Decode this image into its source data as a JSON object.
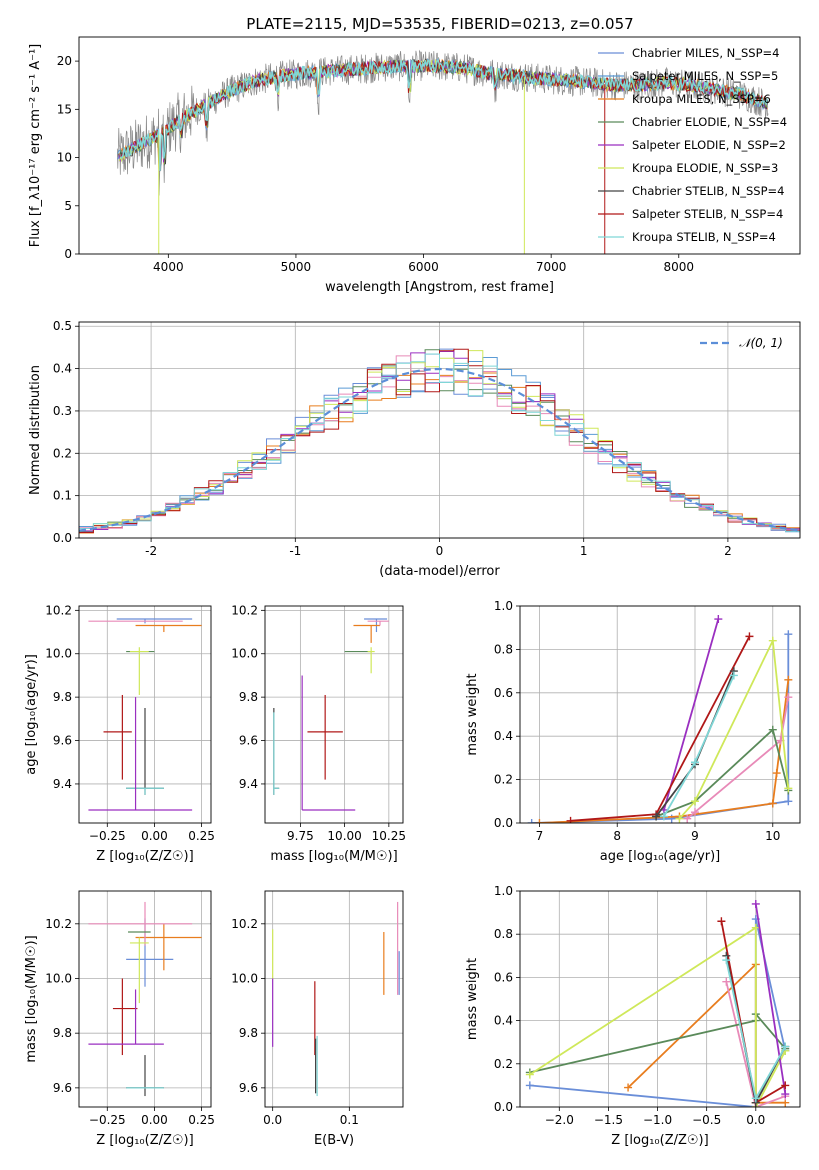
{
  "figure": {
    "title": "PLATE=2115, MJD=53535, FIBERID=0213, z=0.057"
  },
  "colors": [
    "#6a8ed8",
    "#5b9bd5",
    "#e87d1e",
    "#5a8a5a",
    "#9a2fc0",
    "#cfe85a",
    "#444444",
    "#b01818",
    "#7fd6d6"
  ],
  "chart_data": [
    {
      "id": "spectrum",
      "type": "line",
      "title": "PLATE=2115, MJD=53535, FIBERID=0213, z=0.057",
      "xlabel": "wavelength [Angstrom, rest frame]",
      "ylabel": "Flux [f_λ10⁻¹⁷ erg cm⁻² s⁻¹ A⁻¹]",
      "xlim": [
        3300,
        8950
      ],
      "ylim": [
        0,
        22.5
      ],
      "xticks": [
        4000,
        5000,
        6000,
        7000,
        8000
      ],
      "yticks": [
        0,
        5,
        10,
        15,
        20
      ],
      "grid": false,
      "legend_position": "top-right",
      "continuum": {
        "x": [
          3600,
          3800,
          3950,
          4100,
          4300,
          4500,
          4700,
          4900,
          5100,
          5300,
          5500,
          5700,
          5900,
          6100,
          6300,
          6500,
          6700,
          6900,
          7100,
          7300,
          7500,
          7700,
          7900,
          8100,
          8300,
          8500,
          8700
        ],
        "y": [
          10,
          11.5,
          12.5,
          14,
          15.5,
          17,
          18,
          18.5,
          18.8,
          19,
          19.2,
          19.4,
          19.5,
          19.5,
          19.3,
          18.8,
          18.5,
          18.2,
          18,
          17.8,
          17.5,
          17.5,
          17.8,
          17.5,
          17,
          16.5,
          15.5
        ]
      },
      "series": [
        {
          "name": "Chabrier MILES, N_SSP=4",
          "color": "#6a8ed8"
        },
        {
          "name": "Salpeter MILES, N_SSP=5",
          "color": "#5b9bd5"
        },
        {
          "name": "Kroupa MILES, N_SSP=6",
          "color": "#e87d1e"
        },
        {
          "name": "Chabrier ELODIE, N_SSP=4",
          "color": "#5a8a5a"
        },
        {
          "name": "Salpeter ELODIE, N_SSP=2",
          "color": "#9a2fc0"
        },
        {
          "name": "Kroupa ELODIE, N_SSP=3",
          "color": "#cfe85a"
        },
        {
          "name": "Chabrier STELIB, N_SSP=4",
          "color": "#444444"
        },
        {
          "name": "Salpeter STELIB, N_SSP=4",
          "color": "#b01818"
        },
        {
          "name": "Kroupa STELIB, N_SSP=4",
          "color": "#7fd6d6"
        }
      ]
    },
    {
      "id": "residuals",
      "type": "line",
      "xlabel": "(data-model)/error",
      "ylabel": "Normed distribution",
      "xlim": [
        -2.5,
        2.5
      ],
      "ylim": [
        0,
        0.51
      ],
      "xticks": [
        -2,
        -1,
        0,
        1,
        2
      ],
      "yticks": [
        0.0,
        0.1,
        0.2,
        0.3,
        0.4,
        0.5
      ],
      "grid": true,
      "legend_position": "top-right",
      "legend": "𝒩(0, 1)",
      "bin_width": 0.1,
      "gaussian": {
        "mean": 0,
        "sigma": 1,
        "color": "#5b8ed8"
      }
    },
    {
      "id": "age_vs_Z",
      "type": "scatter",
      "xlabel": "Z [log₁₀(Z/Z☉)]",
      "ylabel": "age  [log₁₀(age/yr)]",
      "xlim": [
        -0.4,
        0.3
      ],
      "ylim": [
        9.22,
        10.22
      ],
      "xticks": [
        -0.25,
        0.0,
        0.25
      ],
      "xticklabels": [
        "−0.25",
        "0.00",
        "0.25"
      ],
      "yticks": [
        9.4,
        9.6,
        9.8,
        10.0,
        10.2
      ],
      "grid": true,
      "points": [
        {
          "x": -0.05,
          "y": 10.16,
          "xerr": [
            0.15,
            0.25
          ],
          "yerr": [
            0.02,
            0.0
          ],
          "color": "#6a8ed8"
        },
        {
          "x": 0.05,
          "y": 10.13,
          "xerr": [
            0.15,
            0.2
          ],
          "yerr": [
            0.03,
            0.0
          ],
          "color": "#e87d1e"
        },
        {
          "x": -0.05,
          "y": 10.15,
          "xerr": [
            0.3,
            0.2
          ],
          "yerr": [
            0.0,
            0.0
          ],
          "color": "#e88ab8"
        },
        {
          "x": -0.1,
          "y": 10.01,
          "xerr": [
            0.05,
            0.1
          ],
          "yerr": [
            0.0,
            0.0
          ],
          "color": "#5a8a5a"
        },
        {
          "x": -0.08,
          "y": 10.01,
          "xerr": [
            0.05,
            0.05
          ],
          "yerr": [
            0.2,
            0.02
          ],
          "color": "#cfe85a"
        },
        {
          "x": -0.17,
          "y": 9.64,
          "xerr": [
            0.1,
            0.05
          ],
          "yerr": [
            0.22,
            0.17
          ],
          "color": "#b01818"
        },
        {
          "x": -0.05,
          "y": 9.38,
          "xerr": [
            0.1,
            0.1
          ],
          "yerr": [
            0.03,
            0.37
          ],
          "color": "#444444"
        },
        {
          "x": -0.05,
          "y": 9.38,
          "xerr": [
            0.1,
            0.1
          ],
          "yerr": [
            0.03,
            0.0
          ],
          "color": "#7fd6d6"
        },
        {
          "x": -0.1,
          "y": 9.28,
          "xerr": [
            0.25,
            0.3
          ],
          "yerr": [
            0.0,
            0.52
          ],
          "color": "#9a2fc0"
        }
      ]
    },
    {
      "id": "age_vs_mass",
      "type": "scatter",
      "xlabel": "mass [log₁₀(M/M☉)]",
      "xlim": [
        9.55,
        10.33
      ],
      "ylim": [
        9.22,
        10.22
      ],
      "xticks": [
        9.75,
        10.0,
        10.25
      ],
      "xticklabels": [
        "9.75",
        "10.00",
        "10.25"
      ],
      "yticks": [
        9.4,
        9.6,
        9.8,
        10.0,
        10.2
      ],
      "grid": true,
      "points": [
        {
          "x": 10.18,
          "y": 10.16,
          "xerr": [
            0.07,
            0.06
          ],
          "yerr": [
            0.06,
            0.0
          ],
          "color": "#6a8ed8"
        },
        {
          "x": 10.15,
          "y": 10.13,
          "xerr": [
            0.1,
            0.05
          ],
          "yerr": [
            0.08,
            0.0
          ],
          "color": "#e87d1e"
        },
        {
          "x": 10.2,
          "y": 10.15,
          "xerr": [
            0.07,
            0.05
          ],
          "yerr": [
            0.02,
            0.0
          ],
          "color": "#e88ab8"
        },
        {
          "x": 10.07,
          "y": 10.01,
          "xerr": [
            0.07,
            0.08
          ],
          "yerr": [
            0.0,
            0.0
          ],
          "color": "#5a8a5a"
        },
        {
          "x": 10.15,
          "y": 10.01,
          "xerr": [
            0.02,
            0.02
          ],
          "yerr": [
            0.1,
            0.02
          ],
          "color": "#cfe85a"
        },
        {
          "x": 9.89,
          "y": 9.64,
          "xerr": [
            0.1,
            0.1
          ],
          "yerr": [
            0.22,
            0.17
          ],
          "color": "#b01818"
        },
        {
          "x": 9.6,
          "y": 9.38,
          "xerr": [
            0.0,
            0.03
          ],
          "yerr": [
            0.03,
            0.37
          ],
          "color": "#444444"
        },
        {
          "x": 9.6,
          "y": 9.38,
          "xerr": [
            0.0,
            0.03
          ],
          "yerr": [
            0.03,
            0.35
          ],
          "color": "#7fd6d6"
        },
        {
          "x": 9.76,
          "y": 9.28,
          "xerr": [
            0.0,
            0.3
          ],
          "yerr": [
            0.0,
            0.62
          ],
          "color": "#9a2fc0"
        }
      ]
    },
    {
      "id": "weight_vs_age",
      "type": "line",
      "xlabel": "age  [log₁₀(age/yr)]",
      "ylabel": "mass weight",
      "xlim": [
        6.75,
        10.35
      ],
      "ylim": [
        0,
        1
      ],
      "xticks": [
        7,
        8,
        9,
        10
      ],
      "yticks": [
        0.0,
        0.2,
        0.4,
        0.6,
        0.8,
        1.0
      ],
      "grid": true,
      "series": [
        {
          "color": "#6a8ed8",
          "x": [
            6.9,
            8.7,
            10.0,
            10.2,
            10.2
          ],
          "y": [
            0.0,
            0.02,
            0.09,
            0.1,
            0.87
          ]
        },
        {
          "color": "#e87d1e",
          "x": [
            7.0,
            8.8,
            10.0,
            10.05,
            10.2
          ],
          "y": [
            0.0,
            0.03,
            0.09,
            0.23,
            0.66
          ]
        },
        {
          "color": "#e88ab8",
          "x": [
            8.9,
            9.0,
            10.1,
            10.2
          ],
          "y": [
            0.02,
            0.05,
            0.38,
            0.58
          ]
        },
        {
          "color": "#5a8a5a",
          "x": [
            8.5,
            9.0,
            10.0,
            10.2
          ],
          "y": [
            0.03,
            0.1,
            0.43,
            0.15
          ]
        },
        {
          "color": "#cfe85a",
          "x": [
            8.8,
            9.0,
            10.0,
            10.2
          ],
          "y": [
            0.02,
            0.1,
            0.84,
            0.16
          ]
        },
        {
          "color": "#9a2fc0",
          "x": [
            8.6,
            9.3
          ],
          "y": [
            0.06,
            0.94
          ]
        },
        {
          "color": "#b01818",
          "x": [
            7.4,
            8.5,
            9.7
          ],
          "y": [
            0.01,
            0.04,
            0.86
          ]
        },
        {
          "color": "#444444",
          "x": [
            8.5,
            9.0,
            9.5
          ],
          "y": [
            0.03,
            0.27,
            0.7
          ]
        },
        {
          "color": "#7fd6d6",
          "x": [
            8.6,
            9.0,
            9.5
          ],
          "y": [
            0.03,
            0.28,
            0.68
          ]
        }
      ]
    },
    {
      "id": "mass_vs_Z",
      "type": "scatter",
      "xlabel": "Z [log₁₀(Z/Z☉)]",
      "ylabel": "mass [log₁₀(M/M☉)]",
      "xlim": [
        -0.4,
        0.3
      ],
      "ylim": [
        9.53,
        10.32
      ],
      "xticks": [
        -0.25,
        0.0,
        0.25
      ],
      "xticklabels": [
        "−0.25",
        "0.00",
        "0.25"
      ],
      "yticks": [
        9.6,
        9.8,
        10.0,
        10.2
      ],
      "grid": true,
      "points": [
        {
          "x": -0.05,
          "y": 10.07,
          "xerr": [
            0.1,
            0.15
          ],
          "yerr": [
            0.1,
            0.15
          ],
          "color": "#6a8ed8"
        },
        {
          "x": 0.05,
          "y": 10.15,
          "xerr": [
            0.15,
            0.2
          ],
          "yerr": [
            0.12,
            0.05
          ],
          "color": "#e87d1e"
        },
        {
          "x": -0.05,
          "y": 10.2,
          "xerr": [
            0.3,
            0.25
          ],
          "yerr": [
            0.08,
            0.08
          ],
          "color": "#e88ab8"
        },
        {
          "x": -0.07,
          "y": 10.17,
          "xerr": [
            0.07,
            0.05
          ],
          "yerr": [
            0.0,
            0.0
          ],
          "color": "#5a8a5a"
        },
        {
          "x": -0.08,
          "y": 10.13,
          "xerr": [
            0.05,
            0.05
          ],
          "yerr": [
            0.22,
            0.02
          ],
          "color": "#cfe85a"
        },
        {
          "x": -0.17,
          "y": 9.89,
          "xerr": [
            0.05,
            0.08
          ],
          "yerr": [
            0.17,
            0.11
          ],
          "color": "#b01818"
        },
        {
          "x": -0.05,
          "y": 9.6,
          "xerr": [
            0.1,
            0.1
          ],
          "yerr": [
            0.03,
            0.12
          ],
          "color": "#444444"
        },
        {
          "x": -0.05,
          "y": 9.6,
          "xerr": [
            0.1,
            0.1
          ],
          "yerr": [
            0.0,
            0.0
          ],
          "color": "#7fd6d6"
        },
        {
          "x": -0.1,
          "y": 9.76,
          "xerr": [
            0.25,
            0.15
          ],
          "yerr": [
            0.0,
            0.2
          ],
          "color": "#9a2fc0"
        }
      ]
    },
    {
      "id": "mass_vs_EBV",
      "type": "scatter",
      "xlabel": "E(B-V)",
      "xlim": [
        -0.01,
        0.17
      ],
      "ylim": [
        9.53,
        10.32
      ],
      "xticks": [
        0.0,
        0.1
      ],
      "xticklabels": [
        "0.0",
        "0.1"
      ],
      "yticks": [
        9.6,
        9.8,
        10.0,
        10.2
      ],
      "grid": true,
      "points": [
        {
          "x": 0.0,
          "y": 10.1,
          "xerr": [
            0,
            0
          ],
          "yerr": [
            0.1,
            0.08
          ],
          "color": "#cfe85a"
        },
        {
          "x": 0.0,
          "y": 9.9,
          "xerr": [
            0,
            0
          ],
          "yerr": [
            0.15,
            0.1
          ],
          "color": "#9a2fc0"
        },
        {
          "x": 0.055,
          "y": 9.86,
          "xerr": [
            0,
            0
          ],
          "yerr": [
            0.14,
            0.13
          ],
          "color": "#b01818"
        },
        {
          "x": 0.056,
          "y": 9.74,
          "xerr": [
            0,
            0
          ],
          "yerr": [
            0.16,
            0.04
          ],
          "color": "#444444"
        },
        {
          "x": 0.058,
          "y": 9.7,
          "xerr": [
            0,
            0
          ],
          "yerr": [
            0.13,
            0.09
          ],
          "color": "#7fd6d6"
        },
        {
          "x": 0.145,
          "y": 10.04,
          "xerr": [
            0,
            0
          ],
          "yerr": [
            0.1,
            0.13
          ],
          "color": "#e87d1e"
        },
        {
          "x": 0.163,
          "y": 10.1,
          "xerr": [
            0,
            0
          ],
          "yerr": [
            0.16,
            0.18
          ],
          "color": "#e88ab8"
        },
        {
          "x": 0.165,
          "y": 10.02,
          "xerr": [
            0,
            0
          ],
          "yerr": [
            0.08,
            0.08
          ],
          "color": "#6a8ed8"
        }
      ]
    },
    {
      "id": "weight_vs_Z",
      "type": "line",
      "xlabel": "Z [log₁₀(Z/Z☉)]",
      "ylabel": "mass weight",
      "xlim": [
        -2.4,
        0.45
      ],
      "ylim": [
        0,
        1
      ],
      "xticks": [
        -2.0,
        -1.5,
        -1.0,
        -0.5,
        0.0
      ],
      "xticklabels": [
        "−2.0",
        "−1.5",
        "−1.0",
        "−0.5",
        "0.0"
      ],
      "yticks": [
        0.0,
        0.2,
        0.4,
        0.6,
        0.8,
        1.0
      ],
      "grid": true,
      "series": [
        {
          "color": "#6a8ed8",
          "x": [
            -2.3,
            0.0,
            0.0,
            0.3
          ],
          "y": [
            0.1,
            0.0,
            0.87,
            0.26
          ]
        },
        {
          "color": "#e87d1e",
          "x": [
            -1.3,
            0.0,
            0.0,
            0.3
          ],
          "y": [
            0.09,
            0.66,
            0.02,
            0.02
          ]
        },
        {
          "color": "#e88ab8",
          "x": [
            -0.3,
            0.0,
            0.3
          ],
          "y": [
            0.58,
            0.0,
            0.05
          ]
        },
        {
          "color": "#5a8a5a",
          "x": [
            -2.3,
            0.0,
            0.0,
            0.3
          ],
          "y": [
            0.16,
            0.4,
            0.43,
            0.27
          ]
        },
        {
          "color": "#cfe85a",
          "x": [
            -2.3,
            0.0,
            0.0,
            0.3
          ],
          "y": [
            0.15,
            0.83,
            0.0,
            0.26
          ]
        },
        {
          "color": "#9a2fc0",
          "x": [
            0.0,
            0.3
          ],
          "y": [
            0.94,
            0.06
          ]
        },
        {
          "color": "#b01818",
          "x": [
            -0.35,
            0.0,
            0.3
          ],
          "y": [
            0.86,
            0.02,
            0.1
          ]
        },
        {
          "color": "#444444",
          "x": [
            -0.3,
            0.0,
            0.3
          ],
          "y": [
            0.7,
            0.02,
            0.28
          ]
        },
        {
          "color": "#7fd6d6",
          "x": [
            -0.3,
            0.0,
            0.3
          ],
          "y": [
            0.68,
            0.04,
            0.28
          ]
        }
      ]
    }
  ]
}
